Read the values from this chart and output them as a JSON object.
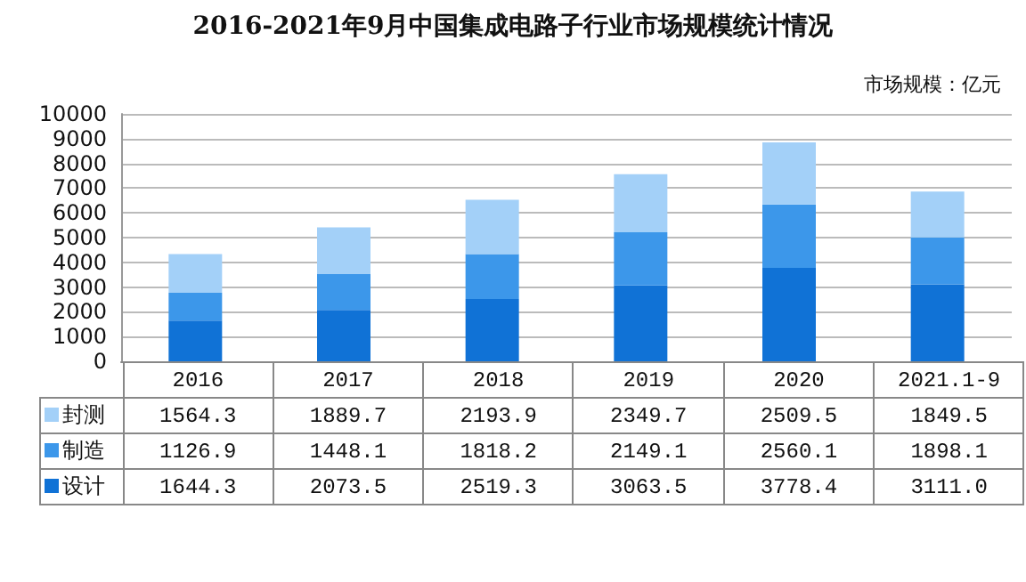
{
  "chart_data": {
    "type": "bar",
    "title": "2016-2021年9月中国集成电路子行业市场规模统计情况",
    "annotations": [
      "市场规模：亿元"
    ],
    "categories": [
      "2016",
      "2017",
      "2018",
      "2019",
      "2020",
      "2021.1-9"
    ],
    "stacked": true,
    "series": [
      {
        "name": "设计",
        "color": "#1072d6",
        "values": [
          1644.3,
          2073.5,
          2519.3,
          3063.5,
          3778.4,
          3111.0
        ],
        "value_labels": [
          "1644.3",
          "2073.5",
          "2519.3",
          "3063.5",
          "3778.4",
          "3111.0"
        ]
      },
      {
        "name": "制造",
        "color": "#3c97ea",
        "values": [
          1126.9,
          1448.1,
          1818.2,
          2149.1,
          2560.1,
          1898.1
        ],
        "value_labels": [
          "1126.9",
          "1448.1",
          "1818.2",
          "2149.1",
          "2560.1",
          "1898.1"
        ]
      },
      {
        "name": "封测",
        "color": "#a3d0f8",
        "values": [
          1564.3,
          1889.7,
          2193.9,
          2349.7,
          2509.5,
          1849.5
        ],
        "value_labels": [
          "1564.3",
          "1889.7",
          "2193.9",
          "2349.7",
          "2509.5",
          "1849.5"
        ]
      }
    ],
    "ylim": [
      0,
      10000
    ],
    "yticks": [
      0,
      1000,
      2000,
      3000,
      4000,
      5000,
      6000,
      7000,
      8000,
      9000,
      10000
    ],
    "grid": "y",
    "legend": "bottom left"
  }
}
